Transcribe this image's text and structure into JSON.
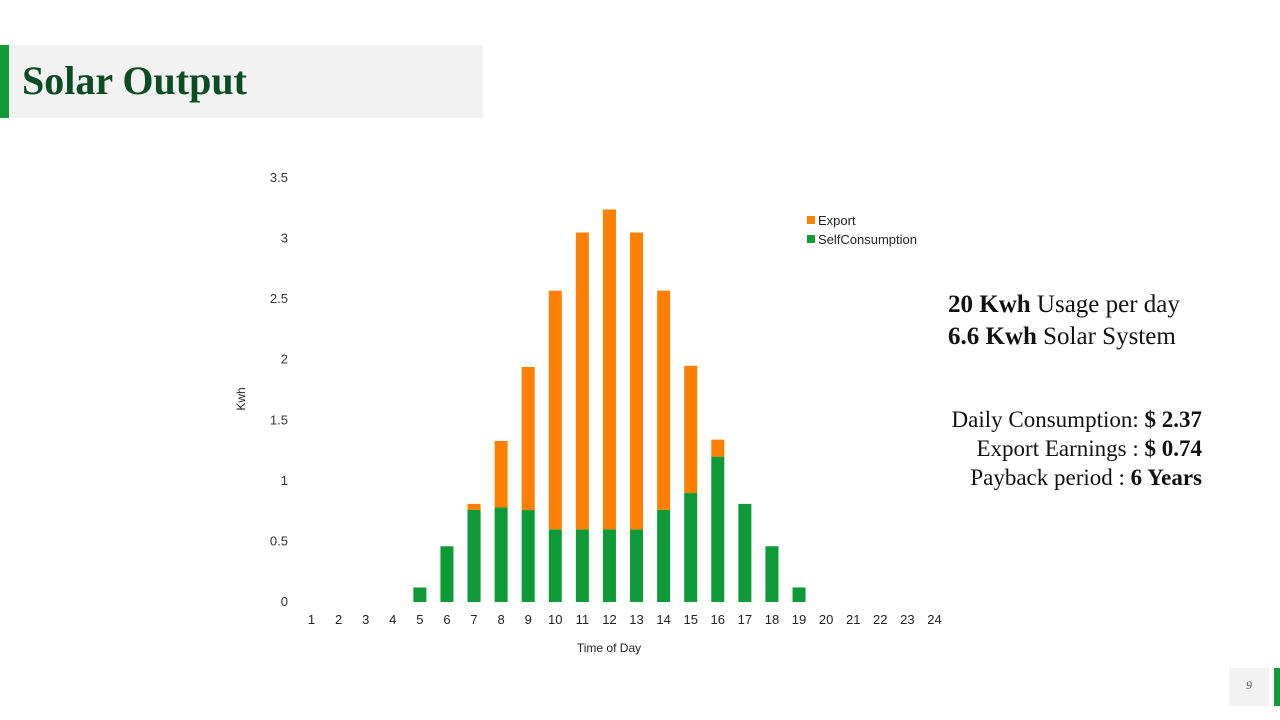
{
  "slide": {
    "title": "Solar Output",
    "page_number": "9",
    "accent_color": "#0e9a36",
    "title_color": "#0b4d22"
  },
  "info": {
    "usage_value": "20 Kwh",
    "usage_label": "Usage per day",
    "system_value": "6.6 Kwh",
    "system_label": "Solar System",
    "daily_label": "Daily Consumption:",
    "daily_value": "$ 2.37",
    "export_label": "Export Earnings :",
    "export_value": "$ 0.74",
    "payback_label": "Payback period :",
    "payback_value": "6 Years"
  },
  "chart_data": {
    "type": "bar",
    "stacked": true,
    "xlabel": "Time of Day",
    "ylabel": "Kwh",
    "ylim": [
      0,
      3.5
    ],
    "yticks": [
      0,
      0.5,
      1,
      1.5,
      2,
      2.5,
      3,
      3.5
    ],
    "ytick_labels": [
      "0",
      "0.5",
      "1",
      "1.5",
      "2",
      "2.5",
      "3",
      "3.5"
    ],
    "grid": false,
    "legend_position": "top-right",
    "categories": [
      "1",
      "2",
      "3",
      "4",
      "5",
      "6",
      "7",
      "8",
      "9",
      "10",
      "11",
      "12",
      "13",
      "14",
      "15",
      "16",
      "17",
      "18",
      "19",
      "20",
      "21",
      "22",
      "23",
      "24"
    ],
    "series": [
      {
        "name": "SelfConsumption",
        "color": "#0e9a36",
        "values": [
          0,
          0,
          0,
          0,
          0.12,
          0.46,
          0.76,
          0.78,
          0.76,
          0.6,
          0.6,
          0.6,
          0.6,
          0.76,
          0.9,
          1.2,
          0.81,
          0.46,
          0.12,
          0,
          0,
          0,
          0,
          0
        ]
      },
      {
        "name": "Export",
        "color": "#ff8000",
        "values": [
          0,
          0,
          0,
          0,
          0,
          0,
          0.05,
          0.55,
          1.18,
          1.97,
          2.45,
          2.64,
          2.45,
          1.81,
          1.05,
          0.14,
          0,
          0,
          0,
          0,
          0,
          0,
          0,
          0
        ]
      }
    ]
  }
}
